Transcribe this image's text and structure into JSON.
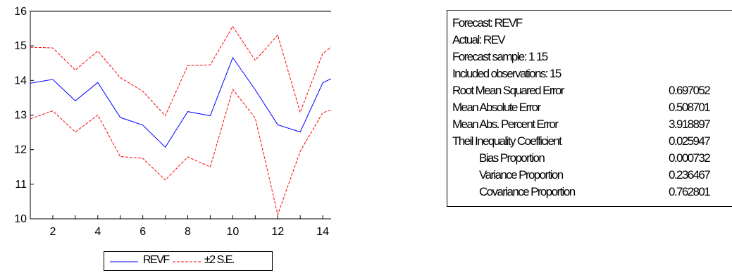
{
  "chart_data": {
    "type": "line",
    "x": [
      1,
      2,
      3,
      4,
      5,
      6,
      7,
      8,
      9,
      10,
      11,
      12,
      13,
      14,
      15
    ],
    "xticks": [
      "2",
      "4",
      "6",
      "8",
      "10",
      "12",
      "14"
    ],
    "ylim": [
      10,
      16
    ],
    "yticks": [
      "10",
      "11",
      "12",
      "13",
      "14",
      "15",
      "16"
    ],
    "series": [
      {
        "name": "REVF",
        "color": "#0000ff",
        "style": "solid",
        "values": [
          13.92,
          14.03,
          13.41,
          13.94,
          12.93,
          12.71,
          12.07,
          13.1,
          12.98,
          14.66,
          13.73,
          12.72,
          12.51,
          13.93,
          14.26
        ]
      },
      {
        "name": "±2 S.E.",
        "color": "#ff0000",
        "style": "dashed",
        "values": [
          14.96,
          14.94,
          14.3,
          14.85,
          14.08,
          13.69,
          12.98,
          14.43,
          14.45,
          15.56,
          14.58,
          15.31,
          13.08,
          14.78,
          15.27
        ]
      },
      {
        "name": "",
        "color": "#ff0000",
        "style": "dashed",
        "values": [
          12.89,
          13.12,
          12.51,
          13.0,
          11.8,
          11.75,
          11.12,
          11.79,
          11.5,
          13.74,
          12.91,
          10.12,
          11.95,
          13.07,
          13.27
        ]
      }
    ],
    "legend": [
      "REVF",
      "±2 S.E."
    ]
  },
  "stats": {
    "lines": [
      {
        "label": "Forecast: REVF",
        "value": ""
      },
      {
        "label": "Actual: REV",
        "value": ""
      },
      {
        "label": "Forecast sample: 1 15",
        "value": ""
      },
      {
        "label": "Included observations: 15",
        "value": ""
      },
      {
        "label": "Root Mean Squared Error",
        "value": "0.697052"
      },
      {
        "label": "Mean Absolute Error",
        "value": "0.508701"
      },
      {
        "label": "Mean Abs. Percent Error",
        "value": "3.918897"
      },
      {
        "label": "Theil Inequality Coefficient",
        "value": "0.025947"
      },
      {
        "label": "Bias Proportion",
        "value": "0.000732"
      },
      {
        "label": "Variance Proportion",
        "value": "0.236467"
      },
      {
        "label": "Covariance Proportion",
        "value": "0.762801"
      }
    ]
  }
}
